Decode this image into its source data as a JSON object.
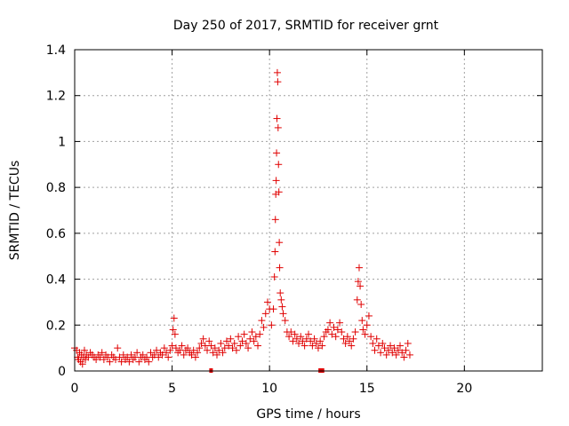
{
  "chart_data": {
    "type": "scatter",
    "title": "Day 250 of 2017, SRMTID for receiver grnt",
    "xlabel": "GPS time / hours",
    "ylabel": "SRMTID / TECUs",
    "xlim": [
      0,
      24
    ],
    "ylim": [
      0,
      1.4
    ],
    "x_ticks": [
      0,
      5,
      10,
      15,
      20
    ],
    "x_tick_labels": [
      "0",
      "5",
      "10",
      "15",
      "20"
    ],
    "y_ticks": [
      0,
      0.2,
      0.4,
      0.6,
      0.8,
      1.0,
      1.2,
      1.4
    ],
    "y_tick_labels": [
      "0",
      "0.2",
      "0.4",
      "0.6",
      "0.8",
      "1",
      "1.2",
      "1.4"
    ],
    "grid": true,
    "marker": "+",
    "color": "#e00000",
    "series": [
      {
        "name": "SRMTID",
        "points": [
          [
            0.0,
            0.1
          ],
          [
            0.1,
            0.09
          ],
          [
            0.15,
            0.06
          ],
          [
            0.2,
            0.05
          ],
          [
            0.25,
            0.08
          ],
          [
            0.3,
            0.04
          ],
          [
            0.35,
            0.07
          ],
          [
            0.4,
            0.03
          ],
          [
            0.45,
            0.06
          ],
          [
            0.5,
            0.09
          ],
          [
            0.55,
            0.05
          ],
          [
            0.6,
            0.07
          ],
          [
            0.7,
            0.06
          ],
          [
            0.8,
            0.08
          ],
          [
            0.9,
            0.07
          ],
          [
            1.0,
            0.06
          ],
          [
            1.1,
            0.05
          ],
          [
            1.2,
            0.07
          ],
          [
            1.3,
            0.06
          ],
          [
            1.4,
            0.08
          ],
          [
            1.5,
            0.05
          ],
          [
            1.6,
            0.07
          ],
          [
            1.7,
            0.06
          ],
          [
            1.8,
            0.04
          ],
          [
            1.9,
            0.07
          ],
          [
            2.0,
            0.06
          ],
          [
            2.1,
            0.05
          ],
          [
            2.2,
            0.1
          ],
          [
            2.3,
            0.06
          ],
          [
            2.4,
            0.04
          ],
          [
            2.5,
            0.07
          ],
          [
            2.6,
            0.05
          ],
          [
            2.7,
            0.06
          ],
          [
            2.8,
            0.04
          ],
          [
            2.9,
            0.07
          ],
          [
            3.0,
            0.05
          ],
          [
            3.1,
            0.06
          ],
          [
            3.2,
            0.08
          ],
          [
            3.3,
            0.04
          ],
          [
            3.4,
            0.06
          ],
          [
            3.5,
            0.07
          ],
          [
            3.6,
            0.05
          ],
          [
            3.7,
            0.06
          ],
          [
            3.8,
            0.04
          ],
          [
            3.9,
            0.08
          ],
          [
            4.0,
            0.06
          ],
          [
            4.1,
            0.07
          ],
          [
            4.2,
            0.09
          ],
          [
            4.3,
            0.06
          ],
          [
            4.4,
            0.08
          ],
          [
            4.5,
            0.07
          ],
          [
            4.6,
            0.1
          ],
          [
            4.7,
            0.08
          ],
          [
            4.8,
            0.06
          ],
          [
            4.9,
            0.09
          ],
          [
            5.0,
            0.11
          ],
          [
            5.05,
            0.18
          ],
          [
            5.1,
            0.23
          ],
          [
            5.15,
            0.16
          ],
          [
            5.2,
            0.1
          ],
          [
            5.3,
            0.08
          ],
          [
            5.4,
            0.09
          ],
          [
            5.5,
            0.11
          ],
          [
            5.6,
            0.07
          ],
          [
            5.7,
            0.09
          ],
          [
            5.8,
            0.1
          ],
          [
            5.9,
            0.08
          ],
          [
            6.0,
            0.07
          ],
          [
            6.1,
            0.09
          ],
          [
            6.2,
            0.06
          ],
          [
            6.3,
            0.08
          ],
          [
            6.4,
            0.1
          ],
          [
            6.5,
            0.12
          ],
          [
            6.6,
            0.14
          ],
          [
            6.7,
            0.11
          ],
          [
            6.8,
            0.09
          ],
          [
            6.9,
            0.13
          ],
          [
            7.0,
            0.11
          ],
          [
            7.1,
            0.08
          ],
          [
            7.2,
            0.1
          ],
          [
            7.3,
            0.07
          ],
          [
            7.4,
            0.09
          ],
          [
            7.5,
            0.12
          ],
          [
            7.6,
            0.08
          ],
          [
            7.7,
            0.1
          ],
          [
            7.8,
            0.13
          ],
          [
            7.9,
            0.11
          ],
          [
            8.0,
            0.14
          ],
          [
            8.1,
            0.1
          ],
          [
            8.2,
            0.12
          ],
          [
            8.3,
            0.09
          ],
          [
            8.4,
            0.15
          ],
          [
            8.5,
            0.11
          ],
          [
            8.6,
            0.13
          ],
          [
            8.7,
            0.16
          ],
          [
            8.8,
            0.12
          ],
          [
            8.9,
            0.1
          ],
          [
            9.0,
            0.14
          ],
          [
            9.1,
            0.17
          ],
          [
            9.2,
            0.13
          ],
          [
            9.3,
            0.15
          ],
          [
            9.4,
            0.11
          ],
          [
            9.5,
            0.16
          ],
          [
            9.6,
            0.22
          ],
          [
            9.7,
            0.19
          ],
          [
            9.8,
            0.25
          ],
          [
            9.9,
            0.3
          ],
          [
            10.0,
            0.27
          ],
          [
            10.1,
            0.2
          ],
          [
            10.2,
            0.27
          ],
          [
            10.25,
            0.41
          ],
          [
            10.28,
            0.52
          ],
          [
            10.3,
            0.66
          ],
          [
            10.32,
            0.77
          ],
          [
            10.34,
            0.83
          ],
          [
            10.36,
            0.95
          ],
          [
            10.38,
            1.1
          ],
          [
            10.4,
            1.3
          ],
          [
            10.42,
            1.26
          ],
          [
            10.44,
            1.06
          ],
          [
            10.46,
            0.9
          ],
          [
            10.48,
            0.78
          ],
          [
            10.5,
            0.56
          ],
          [
            10.52,
            0.45
          ],
          [
            10.55,
            0.34
          ],
          [
            10.6,
            0.31
          ],
          [
            10.65,
            0.28
          ],
          [
            10.7,
            0.25
          ],
          [
            10.8,
            0.22
          ],
          [
            10.9,
            0.17
          ],
          [
            11.0,
            0.15
          ],
          [
            11.1,
            0.17
          ],
          [
            11.2,
            0.13
          ],
          [
            11.3,
            0.16
          ],
          [
            11.4,
            0.14
          ],
          [
            11.5,
            0.12
          ],
          [
            11.6,
            0.15
          ],
          [
            11.7,
            0.13
          ],
          [
            11.8,
            0.11
          ],
          [
            11.9,
            0.14
          ],
          [
            12.0,
            0.16
          ],
          [
            12.1,
            0.13
          ],
          [
            12.2,
            0.11
          ],
          [
            12.3,
            0.14
          ],
          [
            12.4,
            0.12
          ],
          [
            12.5,
            0.1
          ],
          [
            12.6,
            0.13
          ],
          [
            12.7,
            0.11
          ],
          [
            12.8,
            0.15
          ],
          [
            12.9,
            0.17
          ],
          [
            13.0,
            0.18
          ],
          [
            13.1,
            0.21
          ],
          [
            13.2,
            0.16
          ],
          [
            13.3,
            0.19
          ],
          [
            13.4,
            0.15
          ],
          [
            13.5,
            0.18
          ],
          [
            13.6,
            0.21
          ],
          [
            13.7,
            0.17
          ],
          [
            13.8,
            0.14
          ],
          [
            13.9,
            0.12
          ],
          [
            14.0,
            0.15
          ],
          [
            14.1,
            0.13
          ],
          [
            14.2,
            0.11
          ],
          [
            14.3,
            0.14
          ],
          [
            14.4,
            0.17
          ],
          [
            14.5,
            0.31
          ],
          [
            14.55,
            0.39
          ],
          [
            14.6,
            0.45
          ],
          [
            14.65,
            0.37
          ],
          [
            14.7,
            0.29
          ],
          [
            14.75,
            0.22
          ],
          [
            14.8,
            0.18
          ],
          [
            14.9,
            0.16
          ],
          [
            15.0,
            0.2
          ],
          [
            15.1,
            0.24
          ],
          [
            15.2,
            0.15
          ],
          [
            15.3,
            0.12
          ],
          [
            15.4,
            0.09
          ],
          [
            15.5,
            0.14
          ],
          [
            15.6,
            0.11
          ],
          [
            15.7,
            0.08
          ],
          [
            15.8,
            0.12
          ],
          [
            15.9,
            0.1
          ],
          [
            16.0,
            0.07
          ],
          [
            16.1,
            0.09
          ],
          [
            16.2,
            0.11
          ],
          [
            16.3,
            0.08
          ],
          [
            16.4,
            0.1
          ],
          [
            16.5,
            0.07
          ],
          [
            16.6,
            0.09
          ],
          [
            16.7,
            0.11
          ],
          [
            16.8,
            0.08
          ],
          [
            16.9,
            0.06
          ],
          [
            17.0,
            0.09
          ],
          [
            17.1,
            0.12
          ],
          [
            17.2,
            0.07
          ]
        ]
      }
    ],
    "gaps": [
      [
        7.0,
        7.1
      ],
      [
        12.6,
        12.9
      ]
    ]
  }
}
